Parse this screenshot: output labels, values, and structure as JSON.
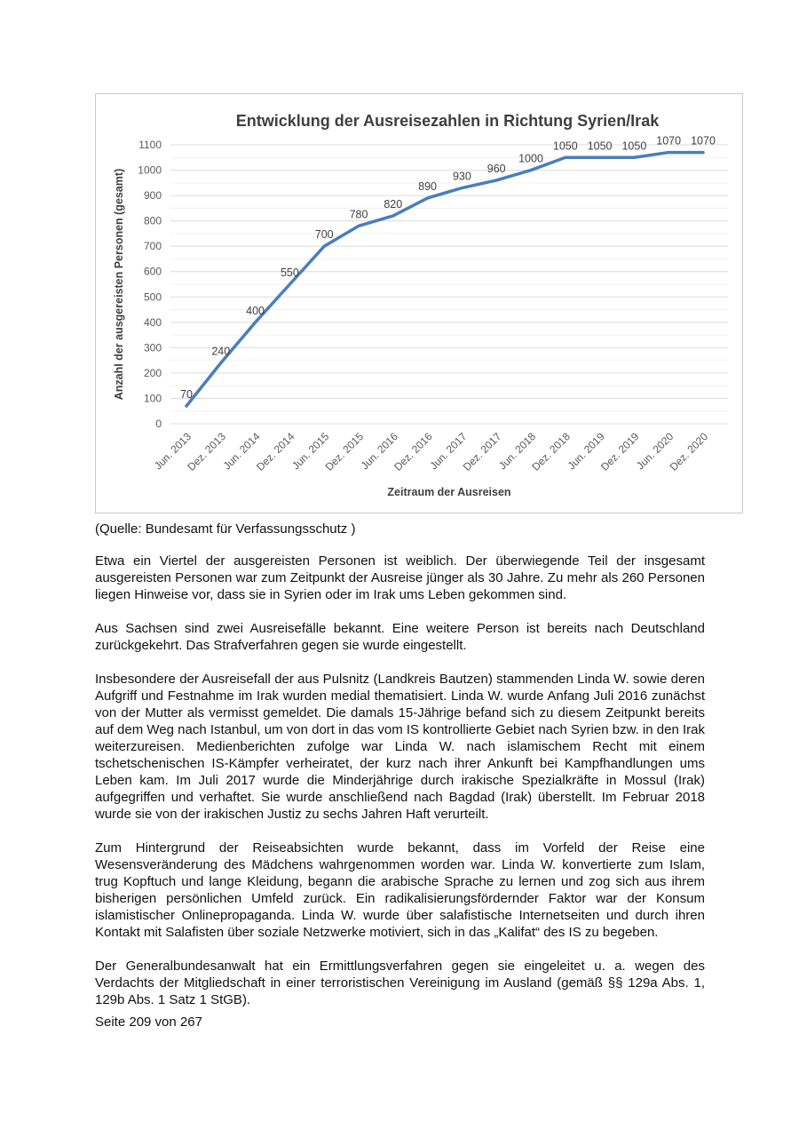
{
  "document": {
    "source_line": "(Quelle: Bundesamt für Verfassungsschutz )",
    "paragraphs": [
      "Etwa ein Viertel der ausgereisten Personen ist weiblich. Der überwiegende Teil der insgesamt ausgereisten Personen war zum Zeitpunkt der Ausreise jünger als 30 Jahre. Zu mehr als 260 Personen liegen Hinweise vor, dass sie in Syrien oder im Irak ums Leben gekommen sind.",
      "Aus Sachsen sind zwei Ausreisefälle bekannt. Eine weitere Person ist bereits nach Deutschland zurückgekehrt. Das Strafverfahren gegen sie wurde eingestellt.",
      "Insbesondere der Ausreisefall der aus Pulsnitz (Landkreis Bautzen) stammenden Linda W. sowie deren Aufgriff und Festnahme im Irak wurden medial thematisiert. Linda W. wurde Anfang Juli 2016 zunächst von der Mutter als vermisst gemeldet. Die damals 15-Jährige befand sich zu diesem Zeitpunkt bereits auf dem Weg nach Istanbul, um von dort in das vom IS kontrollierte Gebiet nach Syrien bzw. in den Irak weiterzureisen. Medienberichten zufolge war Linda W. nach islamischem Recht mit einem tschetschenischen IS-Kämpfer verheiratet, der kurz nach ihrer Ankunft bei Kampfhandlungen ums Leben kam. Im Juli 2017 wurde die Minderjährige durch irakische Spezialkräfte in Mossul (Irak) aufgegriffen und verhaftet. Sie wurde anschließend nach Bagdad (Irak) überstellt. Im Februar 2018 wurde sie von der irakischen Justiz zu sechs Jahren Haft verurteilt.",
      "Zum Hintergrund der Reiseabsichten wurde bekannt, dass im Vorfeld der Reise eine Wesensveränderung des Mädchens wahrgenommen worden war. Linda W. konvertierte zum Islam, trug Kopftuch und lange Kleidung, begann die arabische Sprache zu lernen und zog sich aus ihrem bisherigen persönlichen Umfeld zurück. Ein radikalisierungsfördernder Faktor war der Konsum islamistischer Onlinepropaganda. Linda W. wurde über salafistische Internetseiten und durch ihren Kontakt mit Salafisten über soziale Netzwerke motiviert, sich in das „Kalifat“ des IS zu begeben.",
      "Der Generalbundesanwalt hat ein Ermittlungsverfahren gegen sie eingeleitet u. a. wegen des Verdachts der Mitgliedschaft in einer terroristischen Vereinigung im Ausland (gemäß §§ 129a Abs. 1, 129b Abs. 1 Satz 1 StGB)."
    ],
    "footer": "Seite 209 von 267"
  },
  "chart_data": {
    "type": "line",
    "title": "Entwicklung der Ausreisezahlen in Richtung Syrien/Irak",
    "xlabel": "Zeitraum der Ausreisen",
    "ylabel": "Anzahl der ausgereisten Personen (gesamt)",
    "categories": [
      "Jun. 2013",
      "Dez. 2013",
      "Jun. 2014",
      "Dez. 2014",
      "Jun. 2015",
      "Dez. 2015",
      "Jun. 2016",
      "Dez. 2016",
      "Jun. 2017",
      "Dez. 2017",
      "Jun. 2018",
      "Dez. 2018",
      "Jun. 2019",
      "Dez. 2019",
      "Jun. 2020",
      "Dez. 2020"
    ],
    "values": [
      70,
      240,
      400,
      550,
      700,
      780,
      820,
      890,
      930,
      960,
      1000,
      1050,
      1050,
      1050,
      1070,
      1070
    ],
    "ylim": [
      0,
      1100
    ],
    "ytick_step": 100,
    "minor_grid_step": 50,
    "grid": true,
    "legend": false,
    "data_labels": true,
    "line_color": "#4a7ebb",
    "major_grid_color": "#dcdcdc",
    "minor_grid_color": "#f0f0f0"
  }
}
